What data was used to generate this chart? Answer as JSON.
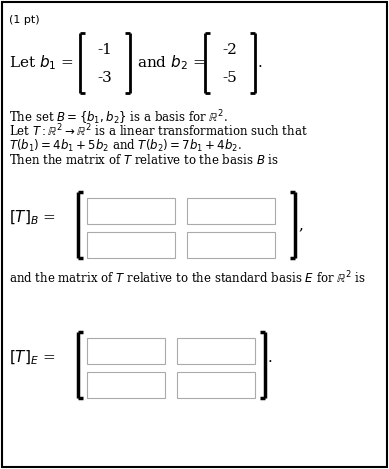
{
  "bg_color": "#ffffff",
  "border_color": "#000000",
  "text_color": "#000000",
  "bracket_color": "#000000",
  "bracket_lw": 2.0,
  "box_edge_color": "#aaaaaa",
  "pt_label": "(1 pt)",
  "b1_top": "-1",
  "b1_bot": "-3",
  "b2_top": "-2",
  "b2_bot": "-5",
  "para_line1": "The set $B = \\{b_1, b_2\\}$ is a basis for $\\mathbb{R}^2$.",
  "para_line2": "Let $T : \\mathbb{R}^2 \\rightarrow \\mathbb{R}^2$ is a linear transformation such that",
  "para_line3": "$T(b_1) = 4b_1 + 5b_2$ and $T(b_2) = 7b_1 + 4b_2$.",
  "para_line4": "Then the matrix of $T$ relative to the basis $B$ is",
  "label_TB": "$[T]_B$",
  "label_TE": "$[T]_E$",
  "sep_line": "and the matrix of $T$ relative to the standard basis $E$ for $\\mathbb{R}^2$ is"
}
